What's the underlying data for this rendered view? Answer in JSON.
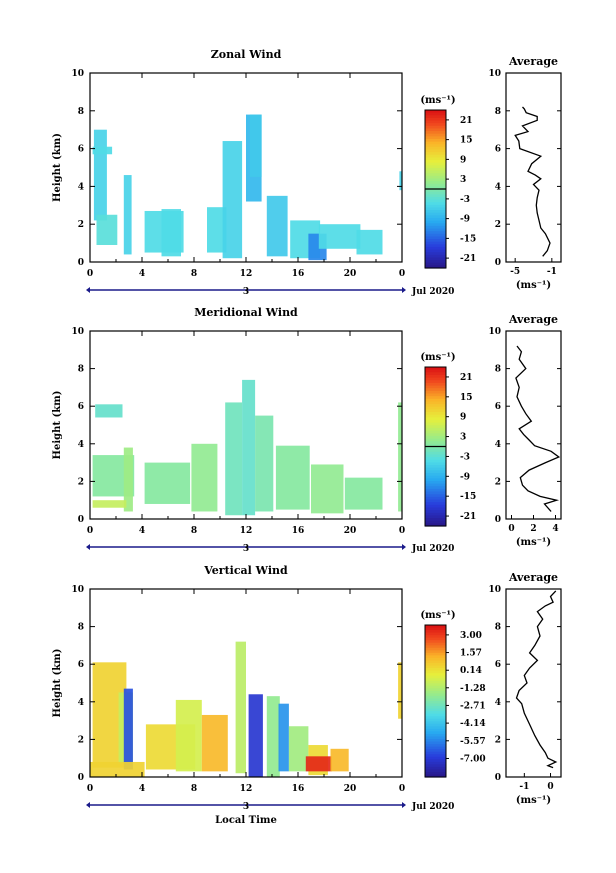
{
  "figure": {
    "xlabel": "Local Time",
    "date_label": "Jul 2020",
    "day_marker": "3"
  },
  "chart_data": [
    {
      "type": "heatmap",
      "title": "Zonal Wind",
      "xlabel": "",
      "ylabel": "Height (km)",
      "xlim": [
        0,
        24
      ],
      "ylim": [
        0,
        10
      ],
      "x_ticks": [
        "0",
        "4",
        "8",
        "12",
        "16",
        "20",
        "0"
      ],
      "y_ticks": [
        "0",
        "2",
        "4",
        "6",
        "8",
        "10"
      ],
      "colorbar": {
        "unit": "(ms⁻¹)",
        "range": [
          -24,
          24
        ],
        "tick_values": [
          21,
          15,
          9,
          3,
          -3,
          -9,
          -15,
          -21
        ],
        "tick_labels": [
          "21",
          "15",
          "9",
          "3",
          "-3",
          "-9",
          "-15",
          "-21"
        ],
        "zero_line": 0
      },
      "cells": [
        [
          0.3,
          2.2,
          1.0,
          4.8,
          -5
        ],
        [
          0.2,
          5.7,
          1.5,
          0.4,
          -4
        ],
        [
          2.6,
          0.4,
          0.6,
          4.2,
          -5
        ],
        [
          0.5,
          0.9,
          1.6,
          1.6,
          -3
        ],
        [
          4.2,
          0.5,
          3.0,
          2.2,
          -4
        ],
        [
          5.5,
          0.3,
          1.5,
          2.5,
          -4
        ],
        [
          9.0,
          0.5,
          1.5,
          2.4,
          -4
        ],
        [
          10.2,
          0.2,
          1.5,
          6.2,
          -5
        ],
        [
          12.0,
          3.2,
          1.2,
          4.6,
          -8
        ],
        [
          12.3,
          4.5,
          0.9,
          3.3,
          -6
        ],
        [
          13.6,
          0.3,
          1.6,
          3.2,
          -6
        ],
        [
          15.4,
          0.2,
          2.3,
          2.0,
          -4
        ],
        [
          16.8,
          0.1,
          1.4,
          1.4,
          -12
        ],
        [
          17.6,
          0.7,
          3.2,
          1.3,
          -4
        ],
        [
          20.5,
          0.4,
          2.0,
          1.3,
          -4
        ],
        [
          23.8,
          3.8,
          0.2,
          1.0,
          -5
        ]
      ],
      "average": {
        "title": "Average",
        "xlabel": "(ms⁻¹)",
        "xlim": [
          -6,
          0
        ],
        "x_ticks": [
          -5,
          -1
        ],
        "ylim": [
          0,
          10
        ],
        "y_ticks": [
          "0",
          "2",
          "4",
          "6",
          "8",
          "10"
        ],
        "x": [
          -2.0,
          -1.5,
          -1.2,
          -1.7,
          -2.2,
          -2.4,
          -2.6,
          -2.7,
          -2.6,
          -2.4,
          -3.0,
          -2.2,
          -2.8,
          -3.6,
          -3.2,
          -2.2,
          -4.5,
          -4.6,
          -5.0,
          -3.6,
          -4.2,
          -2.6,
          -2.6,
          -3.8,
          -4.0,
          -4.2
        ],
        "y": [
          0.3,
          0.6,
          1.0,
          1.5,
          1.8,
          2.2,
          2.6,
          3.0,
          3.4,
          3.8,
          4.1,
          4.4,
          4.6,
          4.8,
          5.2,
          5.6,
          6.0,
          6.4,
          6.7,
          6.9,
          7.2,
          7.5,
          7.7,
          7.9,
          8.1,
          8.2
        ]
      }
    },
    {
      "type": "heatmap",
      "title": "Meridional Wind",
      "xlabel": "",
      "ylabel": "Height (km)",
      "xlim": [
        0,
        24
      ],
      "ylim": [
        0,
        10
      ],
      "x_ticks": [
        "0",
        "4",
        "8",
        "12",
        "16",
        "20",
        "0"
      ],
      "y_ticks": [
        "0",
        "2",
        "4",
        "6",
        "8",
        "10"
      ],
      "colorbar": {
        "unit": "(ms⁻¹)",
        "range": [
          -24,
          24
        ],
        "tick_values": [
          21,
          15,
          9,
          3,
          -3,
          -9,
          -15,
          -21
        ],
        "tick_labels": [
          "21",
          "15",
          "9",
          "3",
          "-3",
          "-9",
          "-15",
          "-21"
        ],
        "zero_line": 0
      },
      "cells": [
        [
          0.2,
          1.2,
          3.2,
          2.2,
          1
        ],
        [
          0.4,
          5.4,
          2.1,
          0.7,
          -2
        ],
        [
          2.6,
          0.4,
          0.7,
          3.4,
          3
        ],
        [
          0.2,
          0.6,
          2.6,
          0.4,
          6
        ],
        [
          4.2,
          0.8,
          3.5,
          2.2,
          1
        ],
        [
          7.8,
          0.4,
          2.0,
          3.6,
          2
        ],
        [
          10.4,
          0.2,
          1.3,
          6.0,
          -1
        ],
        [
          11.7,
          0.2,
          1.0,
          7.2,
          -2
        ],
        [
          12.7,
          0.4,
          1.4,
          5.1,
          0
        ],
        [
          14.3,
          0.5,
          2.6,
          3.4,
          1
        ],
        [
          17.0,
          0.3,
          2.5,
          2.6,
          2
        ],
        [
          19.6,
          0.5,
          2.9,
          1.7,
          1
        ],
        [
          23.7,
          0.4,
          0.3,
          5.8,
          2
        ]
      ],
      "average": {
        "title": "Average",
        "xlabel": "(ms⁻¹)",
        "xlim": [
          -0.5,
          4.5
        ],
        "x_ticks": [
          0,
          2,
          4
        ],
        "ylim": [
          0,
          10
        ],
        "y_ticks": [
          "0",
          "2",
          "4",
          "6",
          "8",
          "10"
        ],
        "x": [
          3.6,
          3.0,
          4.1,
          2.6,
          1.5,
          1.0,
          0.8,
          1.6,
          3.1,
          4.3,
          3.6,
          2.1,
          1.6,
          1.1,
          0.7,
          1.8,
          1.3,
          0.9,
          0.5,
          0.7,
          0.4,
          1.3,
          0.7,
          0.9,
          0.5
        ],
        "y": [
          0.4,
          0.8,
          1.0,
          1.2,
          1.5,
          1.8,
          2.2,
          2.6,
          3.0,
          3.3,
          3.6,
          3.9,
          4.2,
          4.5,
          4.8,
          5.2,
          5.6,
          6.0,
          6.5,
          7.0,
          7.5,
          8.0,
          8.5,
          8.9,
          9.2
        ]
      }
    },
    {
      "type": "heatmap",
      "title": "Vertical Wind",
      "xlabel": "Local Time",
      "ylabel": "Height (km)",
      "xlim": [
        0,
        24
      ],
      "ylim": [
        0,
        10
      ],
      "x_ticks": [
        "0",
        "4",
        "8",
        "12",
        "16",
        "20",
        "0"
      ],
      "y_ticks": [
        "0",
        "2",
        "4",
        "6",
        "8",
        "10"
      ],
      "colorbar": {
        "unit": "(ms⁻¹)",
        "range": [
          -8.5,
          3.8
        ],
        "tick_values": [
          3.0,
          1.57,
          0.14,
          -1.28,
          -2.71,
          -4.14,
          -5.57,
          -7.0
        ],
        "tick_labels": [
          "3.00",
          "1.57",
          "0.14",
          "-1.28",
          "-2.71",
          "-4.14",
          "-5.57",
          "-7.00"
        ],
        "zero_line": null
      },
      "cells": [
        [
          0.2,
          0.5,
          2.6,
          5.6,
          0.6
        ],
        [
          2.2,
          0.7,
          1.1,
          3.8,
          -0.8
        ],
        [
          2.6,
          0.4,
          0.7,
          4.3,
          -6.4
        ],
        [
          0.0,
          0.0,
          4.2,
          0.8,
          0.6
        ],
        [
          4.3,
          0.4,
          3.8,
          2.4,
          0.4
        ],
        [
          6.6,
          0.3,
          2.0,
          3.8,
          -0.5
        ],
        [
          8.6,
          0.3,
          2.0,
          3.0,
          1.2
        ],
        [
          11.2,
          0.2,
          0.8,
          7.0,
          -1.0
        ],
        [
          12.2,
          0.0,
          1.1,
          4.4,
          -7.0
        ],
        [
          13.6,
          0.0,
          1.0,
          4.3,
          -1.8
        ],
        [
          14.5,
          0.3,
          0.8,
          3.6,
          -5.2
        ],
        [
          15.3,
          0.3,
          1.5,
          2.4,
          -1.5
        ],
        [
          16.8,
          0.1,
          1.5,
          1.6,
          0.4
        ],
        [
          16.6,
          0.3,
          2.0,
          0.8,
          3.4
        ],
        [
          18.5,
          0.3,
          1.4,
          1.2,
          1.2
        ],
        [
          23.7,
          3.1,
          0.3,
          3.0,
          0.6
        ]
      ],
      "average": {
        "title": "Average",
        "xlabel": "(ms⁻¹)",
        "xlim": [
          -1.7,
          0.4
        ],
        "x_ticks": [
          -1,
          0
        ],
        "ylim": [
          0,
          10
        ],
        "y_ticks": [
          "0",
          "2",
          "4",
          "6",
          "8",
          "10"
        ],
        "x": [
          0.1,
          -0.1,
          0.2,
          -0.1,
          -0.2,
          -0.4,
          -0.6,
          -0.8,
          -1.0,
          -1.1,
          -1.3,
          -1.2,
          -0.9,
          -1.0,
          -0.8,
          -0.5,
          -0.8,
          -0.6,
          -0.4,
          -0.5,
          -0.3,
          -0.5,
          -0.2,
          0.1,
          0.0,
          0.2
        ],
        "y": [
          0.5,
          0.6,
          0.8,
          1.0,
          1.3,
          1.7,
          2.2,
          2.8,
          3.4,
          3.9,
          4.2,
          4.6,
          5.0,
          5.4,
          5.8,
          6.2,
          6.6,
          7.0,
          7.5,
          8.0,
          8.4,
          8.8,
          9.1,
          9.3,
          9.6,
          9.9
        ]
      }
    }
  ]
}
